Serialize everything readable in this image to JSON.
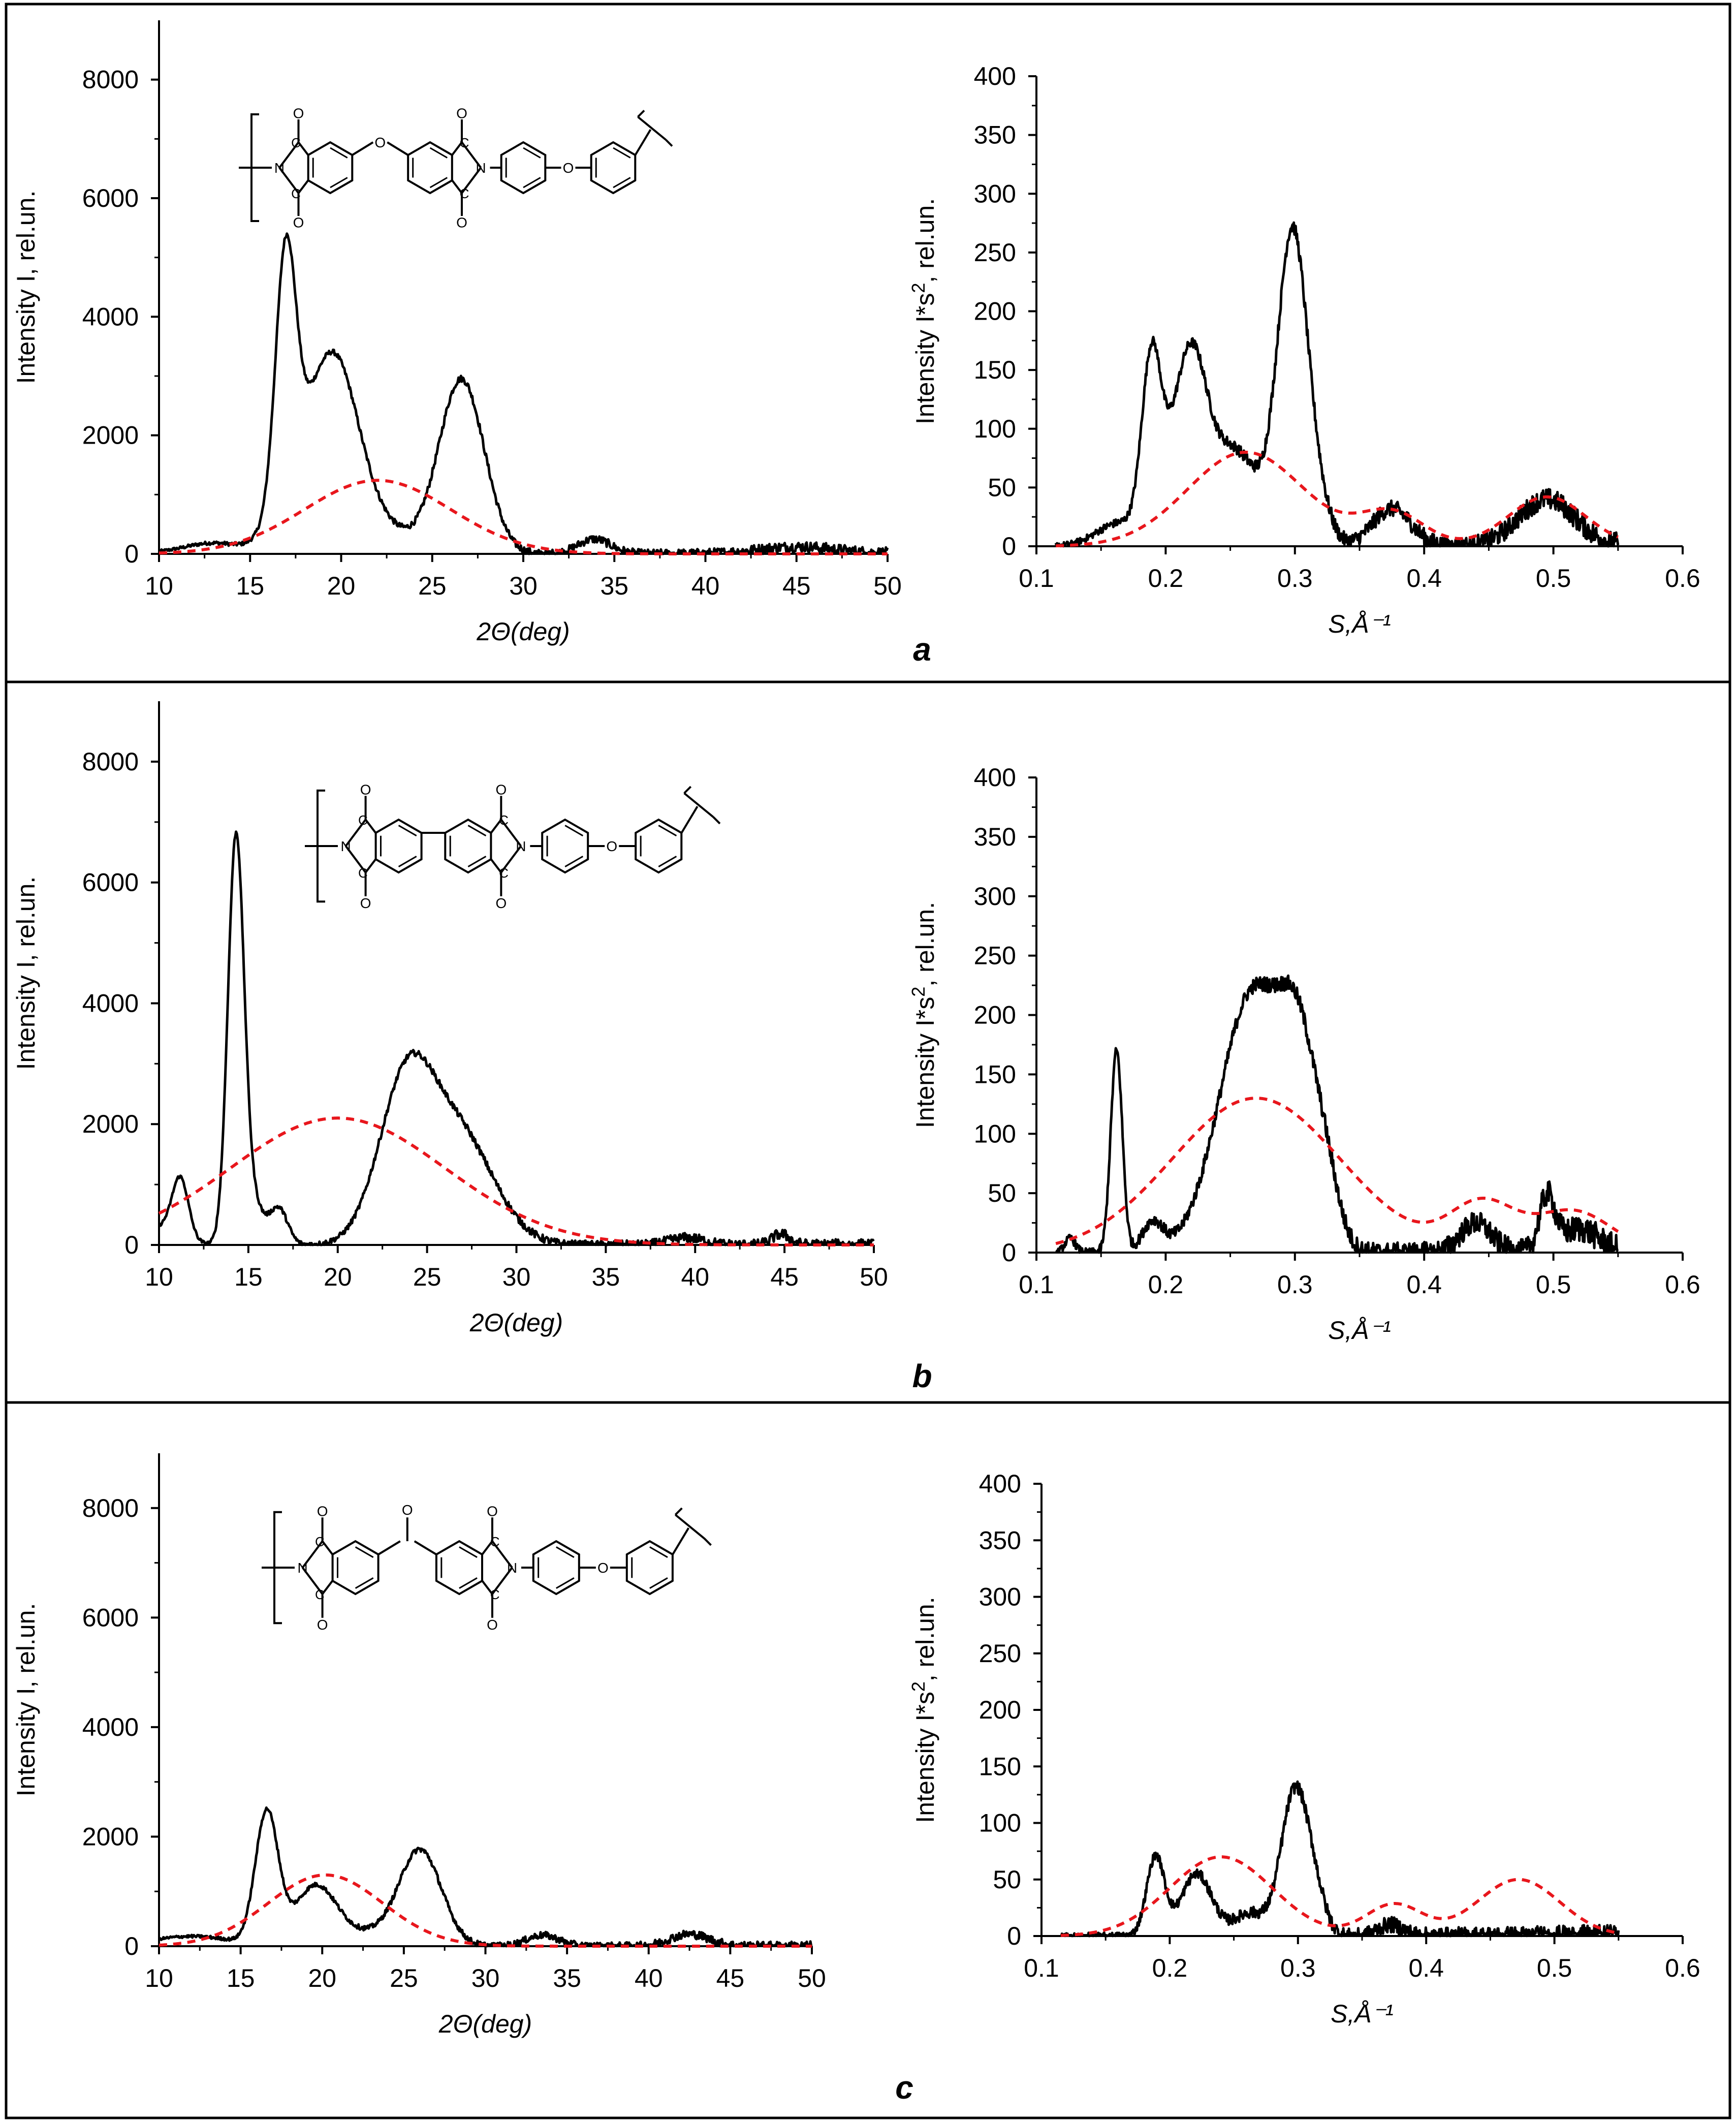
{
  "colors": {
    "measured": "#000000",
    "amorphous_fit": "#e8161c",
    "frame": "#000000"
  },
  "panels": [
    {
      "letter": "a",
      "bridge": "ether",
      "bridge_label": "O"
    },
    {
      "letter": "b",
      "bridge": "biphenyl",
      "bridge_label": ""
    },
    {
      "letter": "c",
      "bridge": "carbonyl",
      "bridge_label": "O"
    }
  ],
  "structure_atoms": {
    "oxygen": "O",
    "nitrogen": "N",
    "carbon": "C"
  },
  "chart_data": [
    {
      "panel": "a",
      "type": "line",
      "xlabel": "2Θ(deg)",
      "ylabel": "Intensity I, rel.un.",
      "xlim": [
        10,
        50
      ],
      "ylim": [
        0,
        9000
      ],
      "x_ticks": [
        "10",
        "15",
        "20",
        "25",
        "30",
        "35",
        "40",
        "45",
        "50"
      ],
      "y_ticks": [
        "0",
        "2000",
        "4000",
        "6000",
        "8000"
      ],
      "series": [
        {
          "name": "measured",
          "style": "solid",
          "peaks": [
            [
              10,
              20,
              1.6
            ],
            [
              13,
              180,
              1.5
            ],
            [
              16.95,
              3950,
              0.55
            ],
            [
              17.4,
              1100,
              1.2
            ],
            [
              19.6,
              3000,
              1.3
            ],
            [
              21.8,
              500,
              1.6
            ],
            [
              26.6,
              2950,
              1.25
            ],
            [
              33.9,
              250,
              0.9
            ],
            [
              45,
              120,
              2.2
            ]
          ],
          "noise": 50
        },
        {
          "name": "amorphous fit",
          "style": "dashed",
          "gauss": [
            1240,
            22.0,
            4.0
          ]
        }
      ]
    },
    {
      "panel": "a",
      "type": "line",
      "xlabel": "S,Å⁻¹",
      "ylabel": "Intensity I*s², rel.un.",
      "xlim": [
        0.1,
        0.6
      ],
      "ylim": [
        0,
        400
      ],
      "x_start": 0.115,
      "x_end": 0.55,
      "x_ticks": [
        "0.1",
        "0.2",
        "0.3",
        "0.4",
        "0.5",
        "0.6"
      ],
      "y_ticks": [
        "0",
        "50",
        "100",
        "150",
        "200",
        "250",
        "300",
        "350",
        "400"
      ],
      "series": [
        {
          "name": "measured",
          "style": "solid",
          "peaks": [
            [
              0.165,
              20,
              0.018
            ],
            [
              0.189,
              150,
              0.0075
            ],
            [
              0.205,
              40,
              0.01
            ],
            [
              0.221,
              155,
              0.012
            ],
            [
              0.245,
              40,
              0.012
            ],
            [
              0.262,
              58,
              0.015
            ],
            [
              0.298,
              265,
              0.0115
            ],
            [
              0.318,
              30,
              0.01
            ],
            [
              0.375,
              32,
              0.015
            ],
            [
              0.495,
              40,
              0.022
            ]
          ],
          "noise": 5
        },
        {
          "name": "amorphous fit",
          "style": "dashed",
          "gauss_sum": [
            [
              80,
              0.262,
              0.045
            ],
            [
              28,
              0.375,
              0.025
            ],
            [
              42,
              0.495,
              0.03
            ]
          ]
        }
      ]
    },
    {
      "panel": "b",
      "type": "line",
      "xlabel": "2Θ(deg)",
      "ylabel": "Intensity I, rel.un.",
      "xlim": [
        10,
        50
      ],
      "ylim": [
        0,
        9000
      ],
      "x_ticks": [
        "10",
        "15",
        "20",
        "25",
        "30",
        "35",
        "40",
        "45",
        "50"
      ],
      "y_ticks": [
        "0",
        "2000",
        "4000",
        "6000",
        "8000"
      ],
      "series": [
        {
          "name": "measured",
          "style": "solid",
          "peaks": [
            [
              10.2,
              300,
              1.0
            ],
            [
              11.2,
              950,
              0.45
            ],
            [
              14.3,
              6600,
              0.45
            ],
            [
              15.2,
              700,
              0.6
            ],
            [
              16.7,
              600,
              0.5
            ],
            [
              24.0,
              2950,
              1.6
            ],
            [
              27.0,
              1400,
              1.5
            ],
            [
              29.0,
              350,
              1.5
            ],
            [
              39.5,
              120,
              1.0
            ],
            [
              44.8,
              180,
              0.5
            ]
          ],
          "noise": 50
        },
        {
          "name": "amorphous fit",
          "style": "dashed",
          "gauss": [
            2100,
            20.0,
            6.0
          ]
        }
      ]
    },
    {
      "panel": "b",
      "type": "line",
      "xlabel": "S,Å⁻¹",
      "ylabel": "Intensity I*s², rel.un.",
      "xlim": [
        0.1,
        0.6
      ],
      "ylim": [
        0,
        400
      ],
      "x_start": 0.115,
      "x_end": 0.55,
      "x_ticks": [
        "0.1",
        "0.2",
        "0.3",
        "0.4",
        "0.5",
        "0.6"
      ],
      "y_ticks": [
        "0",
        "50",
        "100",
        "150",
        "200",
        "250",
        "300",
        "350",
        "400"
      ],
      "series": [
        {
          "name": "measured",
          "style": "solid",
          "peaks": [
            [
              0.126,
              12,
              0.004
            ],
            [
              0.162,
              170,
              0.0045
            ],
            [
              0.19,
              25,
              0.008
            ],
            [
              0.268,
              220,
              0.026
            ],
            [
              0.304,
              120,
              0.014
            ],
            [
              0.325,
              40,
              0.01
            ],
            [
              0.44,
              25,
              0.012
            ],
            [
              0.495,
              45,
              0.006
            ],
            [
              0.52,
              20,
              0.015
            ]
          ],
          "noise": 6
        },
        {
          "name": "amorphous fit",
          "style": "dashed",
          "gauss_sum": [
            [
              130,
              0.27,
              0.065
            ],
            [
              40,
              0.445,
              0.025
            ],
            [
              35,
              0.515,
              0.03
            ]
          ]
        }
      ]
    },
    {
      "panel": "c",
      "type": "line",
      "xlabel": "2Θ(deg)",
      "ylabel": "Intensity I, rel.un.",
      "xlim": [
        10,
        50
      ],
      "ylim": [
        0,
        9000
      ],
      "x_ticks": [
        "10",
        "15",
        "20",
        "25",
        "30",
        "35",
        "40",
        "45",
        "50"
      ],
      "y_ticks": [
        "0",
        "2000",
        "4000",
        "6000",
        "8000"
      ],
      "series": [
        {
          "name": "measured",
          "style": "solid",
          "peaks": [
            [
              12,
              180,
              2.5
            ],
            [
              16.6,
              2400,
              0.7
            ],
            [
              19.6,
              1100,
              1.3
            ],
            [
              26.0,
              1750,
              1.3
            ],
            [
              22.8,
              200,
              1.5
            ],
            [
              33.5,
              200,
              1.0
            ],
            [
              42.5,
              220,
              1.2
            ]
          ],
          "noise": 45
        },
        {
          "name": "amorphous fit",
          "style": "dashed",
          "gauss": [
            1300,
            20.2,
            3.5
          ]
        }
      ]
    },
    {
      "panel": "c",
      "type": "line",
      "xlabel": "S,Å⁻¹",
      "ylabel": "Intensity I*s², rel.un.",
      "xlim": [
        0.1,
        0.6
      ],
      "ylim": [
        0,
        400
      ],
      "x_start": 0.115,
      "x_end": 0.55,
      "x_ticks": [
        "0.1",
        "0.2",
        "0.3",
        "0.4",
        "0.5",
        "0.6"
      ],
      "y_ticks": [
        "0",
        "50",
        "100",
        "150",
        "200",
        "250",
        "300",
        "350",
        "400"
      ],
      "series": [
        {
          "name": "measured",
          "style": "solid",
          "peaks": [
            [
              0.189,
              70,
              0.007
            ],
            [
              0.221,
              55,
              0.012
            ],
            [
              0.262,
              20,
              0.012
            ],
            [
              0.298,
              130,
              0.011
            ],
            [
              0.315,
              20,
              0.008
            ],
            [
              0.372,
              10,
              0.01
            ]
          ],
          "noise": 5
        },
        {
          "name": "amorphous fit",
          "style": "dashed",
          "gauss_sum": [
            [
              70,
              0.24,
              0.04
            ],
            [
              28,
              0.375,
              0.022
            ],
            [
              50,
              0.472,
              0.032
            ]
          ]
        }
      ]
    }
  ]
}
